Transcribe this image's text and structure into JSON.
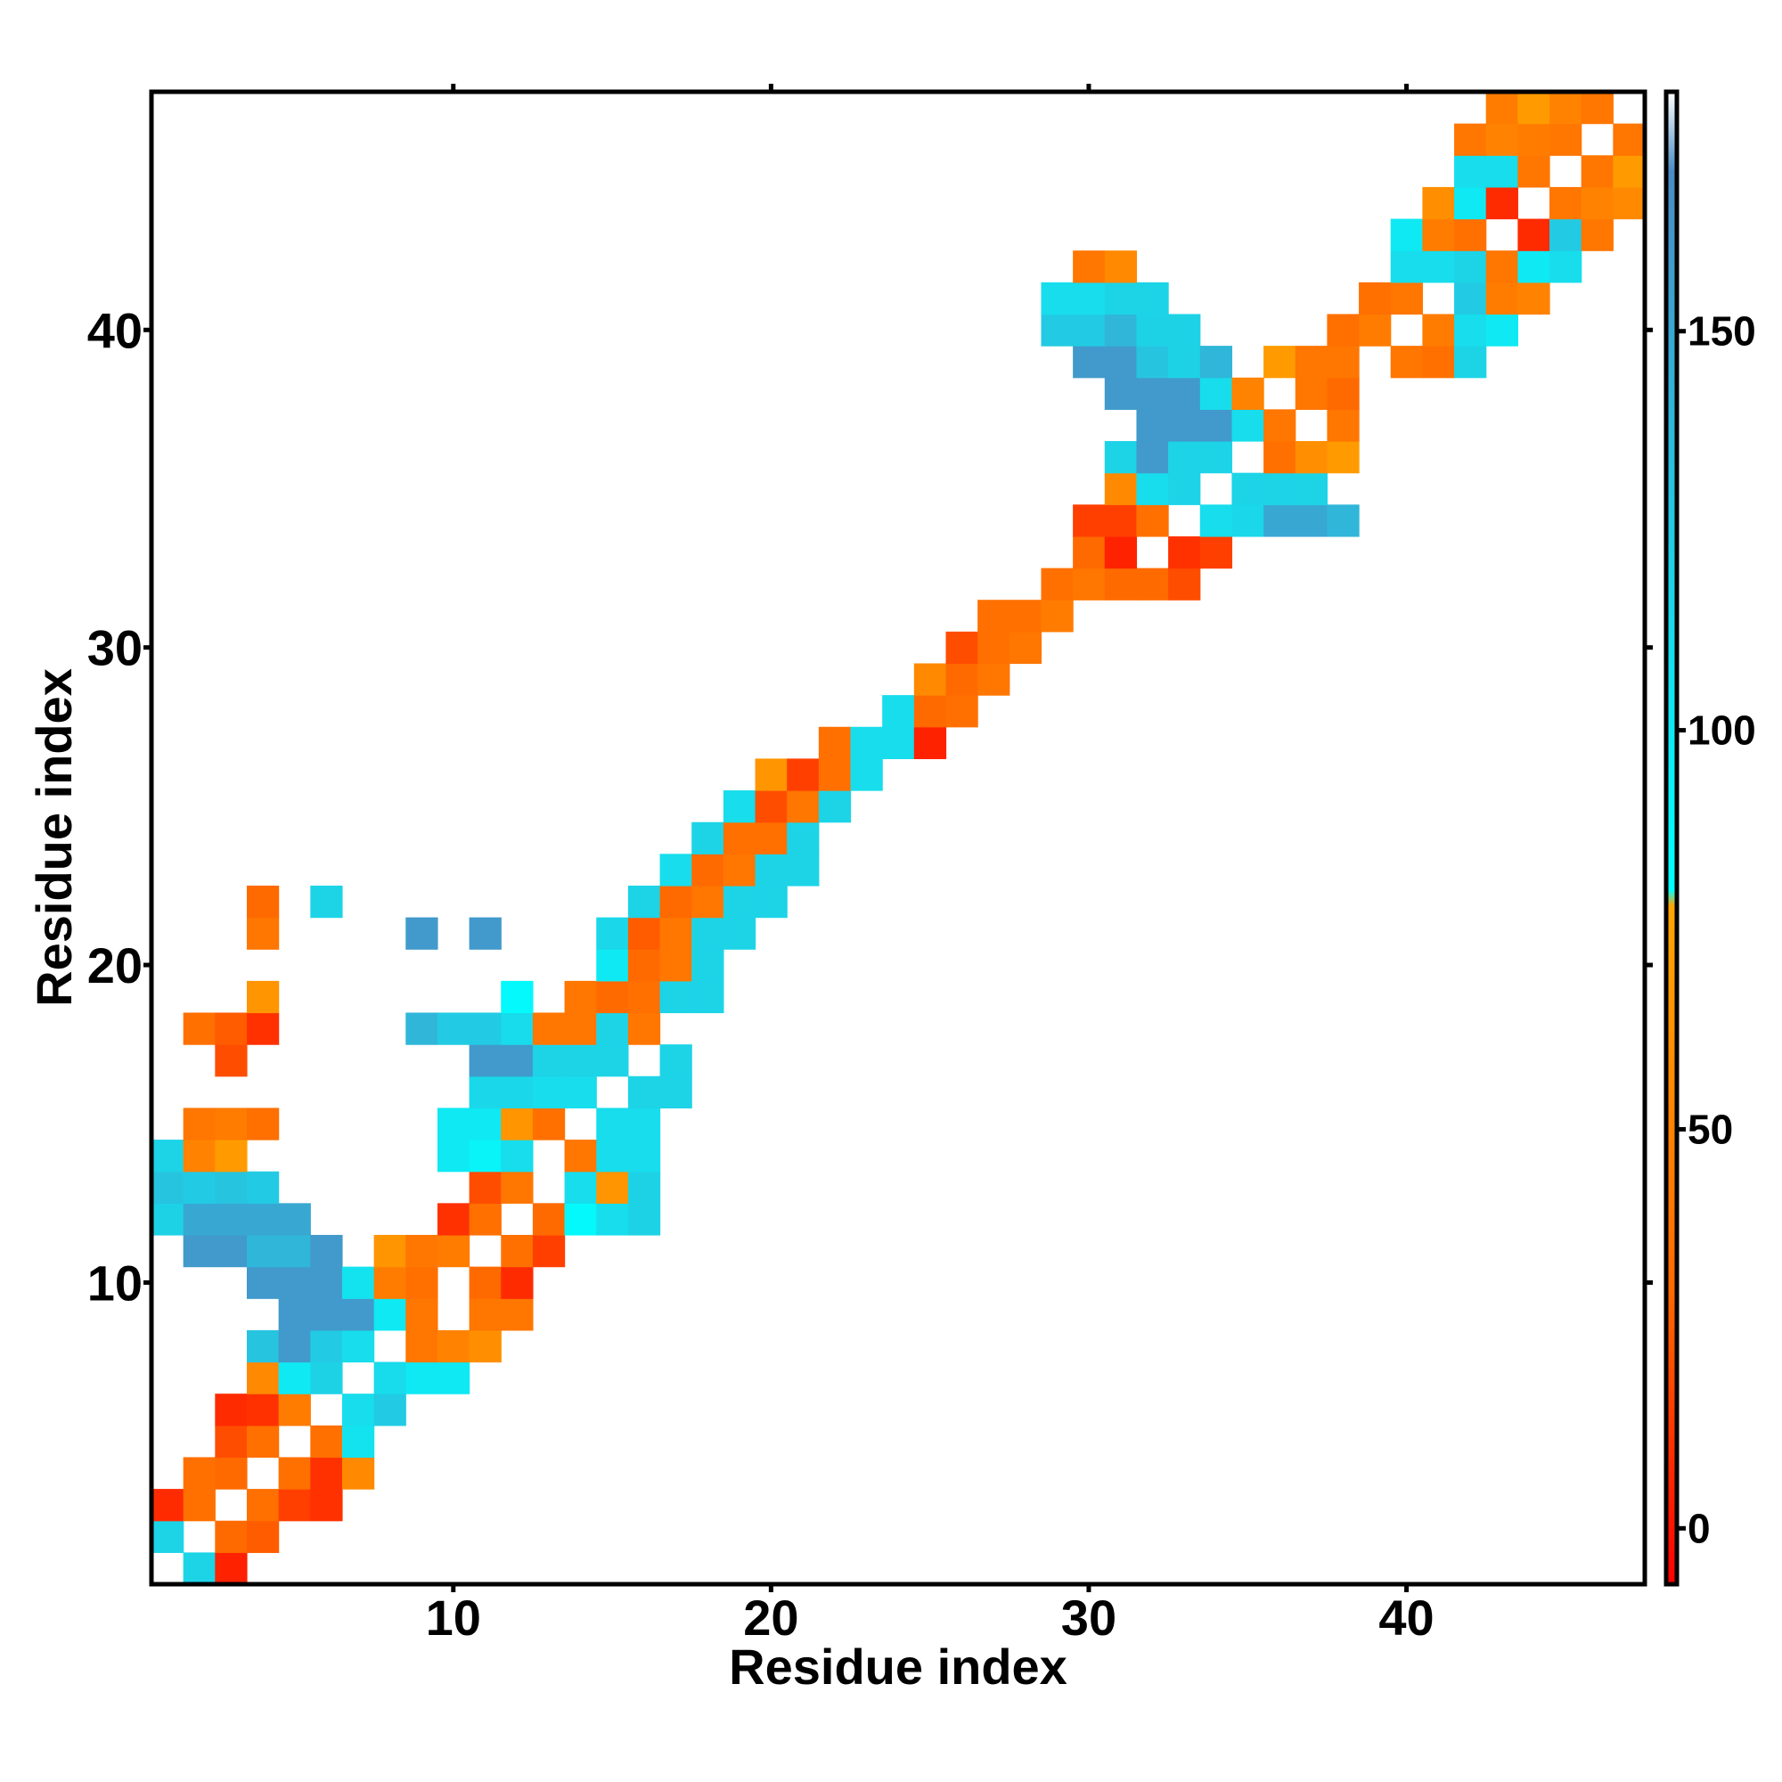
{
  "chart_data": {
    "type": "heatmap",
    "xlabel": "Residue index",
    "ylabel": "Residue index",
    "x_range": [
      1,
      47
    ],
    "y_range": [
      1,
      47
    ],
    "x_ticks": [
      10,
      20,
      30,
      40
    ],
    "y_ticks": [
      10,
      20,
      30,
      40
    ],
    "colorbar": {
      "range": [
        -7,
        180
      ],
      "ticks": [
        0,
        50,
        100,
        150
      ],
      "stops": [
        {
          "value": -7,
          "color": "#ff0000"
        },
        {
          "value": 30,
          "color": "#ff6a00"
        },
        {
          "value": 78,
          "color": "#ffa500"
        },
        {
          "value": 80,
          "color": "#00ffff"
        },
        {
          "value": 120,
          "color": "#1ed2e6"
        },
        {
          "value": 170,
          "color": "#4a8cc4"
        },
        {
          "value": 180,
          "color": "#ffffff"
        }
      ]
    },
    "grid": false,
    "legend": "colorbar-right",
    "cells_ref": "Each cell is [x_residue, y_residue, value]; blank (white) cells have no value.",
    "cells": [
      [
        1,
        1,
        null
      ],
      [
        2,
        1,
        118
      ],
      [
        3,
        1,
        5
      ],
      [
        1,
        2,
        118
      ],
      [
        3,
        2,
        30
      ],
      [
        4,
        2,
        25
      ],
      [
        1,
        3,
        8
      ],
      [
        2,
        3,
        35
      ],
      [
        4,
        3,
        35
      ],
      [
        5,
        3,
        15
      ],
      [
        6,
        3,
        10
      ],
      [
        2,
        4,
        35
      ],
      [
        3,
        4,
        30
      ],
      [
        5,
        4,
        35
      ],
      [
        6,
        4,
        10
      ],
      [
        7,
        4,
        55
      ],
      [
        3,
        5,
        20
      ],
      [
        4,
        5,
        35
      ],
      [
        6,
        5,
        35
      ],
      [
        7,
        5,
        105
      ],
      [
        3,
        6,
        8
      ],
      [
        4,
        6,
        10
      ],
      [
        5,
        6,
        45
      ],
      [
        7,
        6,
        110
      ],
      [
        8,
        6,
        125
      ],
      [
        4,
        7,
        55
      ],
      [
        5,
        7,
        100
      ],
      [
        6,
        7,
        120
      ],
      [
        8,
        7,
        112
      ],
      [
        9,
        7,
        100
      ],
      [
        10,
        7,
        100
      ],
      [
        4,
        8,
        130
      ],
      [
        5,
        8,
        160
      ],
      [
        6,
        8,
        125
      ],
      [
        7,
        8,
        110
      ],
      [
        9,
        8,
        40
      ],
      [
        10,
        8,
        50
      ],
      [
        11,
        8,
        60
      ],
      [
        5,
        9,
        160
      ],
      [
        6,
        9,
        160
      ],
      [
        7,
        9,
        160
      ],
      [
        8,
        9,
        100
      ],
      [
        9,
        9,
        40
      ],
      [
        11,
        9,
        40
      ],
      [
        12,
        9,
        40
      ],
      [
        4,
        10,
        160
      ],
      [
        5,
        10,
        160
      ],
      [
        6,
        10,
        160
      ],
      [
        7,
        10,
        105
      ],
      [
        8,
        10,
        45
      ],
      [
        9,
        10,
        35
      ],
      [
        11,
        10,
        30
      ],
      [
        12,
        10,
        8
      ],
      [
        2,
        11,
        160
      ],
      [
        3,
        11,
        160
      ],
      [
        4,
        11,
        140
      ],
      [
        5,
        11,
        140
      ],
      [
        6,
        11,
        160
      ],
      [
        8,
        11,
        65
      ],
      [
        9,
        11,
        40
      ],
      [
        10,
        11,
        45
      ],
      [
        12,
        11,
        35
      ],
      [
        13,
        11,
        15
      ],
      [
        1,
        12,
        120
      ],
      [
        2,
        12,
        150
      ],
      [
        3,
        12,
        150
      ],
      [
        4,
        12,
        150
      ],
      [
        5,
        12,
        150
      ],
      [
        10,
        12,
        10
      ],
      [
        11,
        12,
        35
      ],
      [
        13,
        12,
        30
      ],
      [
        14,
        12,
        85
      ],
      [
        15,
        12,
        110
      ],
      [
        16,
        12,
        120
      ],
      [
        1,
        13,
        130
      ],
      [
        2,
        13,
        125
      ],
      [
        3,
        13,
        130
      ],
      [
        4,
        13,
        125
      ],
      [
        11,
        13,
        20
      ],
      [
        12,
        13,
        40
      ],
      [
        14,
        13,
        110
      ],
      [
        15,
        13,
        65
      ],
      [
        16,
        13,
        120
      ],
      [
        1,
        14,
        118
      ],
      [
        2,
        14,
        50
      ],
      [
        3,
        14,
        70
      ],
      [
        10,
        14,
        100
      ],
      [
        11,
        14,
        90
      ],
      [
        12,
        14,
        110
      ],
      [
        14,
        14,
        40
      ],
      [
        15,
        14,
        110
      ],
      [
        16,
        14,
        110
      ],
      [
        2,
        15,
        40
      ],
      [
        3,
        15,
        45
      ],
      [
        4,
        15,
        35
      ],
      [
        10,
        15,
        100
      ],
      [
        11,
        15,
        100
      ],
      [
        12,
        15,
        65
      ],
      [
        13,
        15,
        35
      ],
      [
        15,
        15,
        110
      ],
      [
        16,
        15,
        110
      ],
      [
        11,
        16,
        115
      ],
      [
        12,
        16,
        115
      ],
      [
        13,
        16,
        110
      ],
      [
        14,
        16,
        110
      ],
      [
        16,
        16,
        118
      ],
      [
        17,
        16,
        118
      ],
      [
        3,
        17,
        20
      ],
      [
        11,
        17,
        160
      ],
      [
        12,
        17,
        160
      ],
      [
        13,
        17,
        118
      ],
      [
        14,
        17,
        118
      ],
      [
        15,
        17,
        118
      ],
      [
        17,
        17,
        118
      ],
      [
        2,
        18,
        35
      ],
      [
        3,
        18,
        25
      ],
      [
        4,
        18,
        10
      ],
      [
        9,
        18,
        140
      ],
      [
        10,
        18,
        125
      ],
      [
        11,
        18,
        125
      ],
      [
        12,
        18,
        112
      ],
      [
        13,
        18,
        40
      ],
      [
        14,
        18,
        40
      ],
      [
        15,
        18,
        118
      ],
      [
        16,
        18,
        40
      ],
      [
        4,
        19,
        65
      ],
      [
        12,
        19,
        85
      ],
      [
        14,
        19,
        40
      ],
      [
        15,
        19,
        30
      ],
      [
        16,
        19,
        35
      ],
      [
        17,
        19,
        118
      ],
      [
        18,
        19,
        118
      ],
      [
        15,
        20,
        100
      ],
      [
        16,
        20,
        30
      ],
      [
        17,
        20,
        40
      ],
      [
        18,
        20,
        118
      ],
      [
        4,
        21,
        40
      ],
      [
        9,
        21,
        160
      ],
      [
        11,
        21,
        160
      ],
      [
        15,
        21,
        115
      ],
      [
        16,
        21,
        25
      ],
      [
        17,
        21,
        40
      ],
      [
        18,
        21,
        118
      ],
      [
        19,
        21,
        118
      ],
      [
        4,
        22,
        30
      ],
      [
        6,
        22,
        118
      ],
      [
        16,
        22,
        118
      ],
      [
        17,
        22,
        30
      ],
      [
        18,
        22,
        40
      ],
      [
        19,
        22,
        118
      ],
      [
        20,
        22,
        118
      ],
      [
        17,
        23,
        110
      ],
      [
        18,
        23,
        30
      ],
      [
        19,
        23,
        40
      ],
      [
        20,
        23,
        118
      ],
      [
        21,
        23,
        118
      ],
      [
        18,
        24,
        118
      ],
      [
        19,
        24,
        35
      ],
      [
        20,
        24,
        35
      ],
      [
        21,
        24,
        118
      ],
      [
        19,
        25,
        110
      ],
      [
        20,
        25,
        20
      ],
      [
        21,
        25,
        40
      ],
      [
        22,
        25,
        118
      ],
      [
        20,
        26,
        65
      ],
      [
        21,
        26,
        15
      ],
      [
        22,
        26,
        35
      ],
      [
        23,
        26,
        110
      ],
      [
        22,
        27,
        35
      ],
      [
        23,
        27,
        110
      ],
      [
        24,
        27,
        110
      ],
      [
        25,
        27,
        5
      ],
      [
        24,
        28,
        110
      ],
      [
        25,
        28,
        30
      ],
      [
        26,
        28,
        35
      ],
      [
        25,
        29,
        55
      ],
      [
        26,
        29,
        30
      ],
      [
        27,
        29,
        40
      ],
      [
        26,
        30,
        20
      ],
      [
        27,
        30,
        35
      ],
      [
        28,
        30,
        40
      ],
      [
        27,
        31,
        35
      ],
      [
        28,
        31,
        35
      ],
      [
        29,
        31,
        45
      ],
      [
        29,
        32,
        35
      ],
      [
        30,
        32,
        40
      ],
      [
        31,
        32,
        30
      ],
      [
        32,
        32,
        30
      ],
      [
        33,
        32,
        20
      ],
      [
        30,
        33,
        30
      ],
      [
        31,
        33,
        5
      ],
      [
        33,
        33,
        10
      ],
      [
        34,
        33,
        15
      ],
      [
        30,
        34,
        15
      ],
      [
        31,
        34,
        15
      ],
      [
        32,
        34,
        35
      ],
      [
        34,
        34,
        110
      ],
      [
        35,
        34,
        115
      ],
      [
        36,
        34,
        150
      ],
      [
        37,
        34,
        150
      ],
      [
        38,
        34,
        140
      ],
      [
        31,
        35,
        55
      ],
      [
        32,
        35,
        110
      ],
      [
        33,
        35,
        118
      ],
      [
        35,
        35,
        118
      ],
      [
        36,
        35,
        118
      ],
      [
        37,
        35,
        118
      ],
      [
        31,
        36,
        118
      ],
      [
        32,
        36,
        160
      ],
      [
        33,
        36,
        118
      ],
      [
        34,
        36,
        118
      ],
      [
        36,
        36,
        35
      ],
      [
        37,
        36,
        60
      ],
      [
        38,
        36,
        70
      ],
      [
        32,
        37,
        160
      ],
      [
        33,
        37,
        160
      ],
      [
        34,
        37,
        160
      ],
      [
        35,
        37,
        110
      ],
      [
        36,
        37,
        40
      ],
      [
        38,
        37,
        40
      ],
      [
        31,
        38,
        160
      ],
      [
        32,
        38,
        160
      ],
      [
        33,
        38,
        160
      ],
      [
        34,
        38,
        110
      ],
      [
        35,
        38,
        50
      ],
      [
        37,
        38,
        40
      ],
      [
        38,
        38,
        30
      ],
      [
        30,
        39,
        160
      ],
      [
        31,
        39,
        160
      ],
      [
        32,
        39,
        130
      ],
      [
        33,
        39,
        120
      ],
      [
        34,
        39,
        140
      ],
      [
        36,
        39,
        70
      ],
      [
        37,
        39,
        40
      ],
      [
        38,
        39,
        40
      ],
      [
        40,
        39,
        40
      ],
      [
        41,
        39,
        35
      ],
      [
        42,
        39,
        118
      ],
      [
        29,
        40,
        125
      ],
      [
        30,
        40,
        125
      ],
      [
        31,
        40,
        140
      ],
      [
        32,
        40,
        120
      ],
      [
        33,
        40,
        120
      ],
      [
        38,
        40,
        35
      ],
      [
        39,
        40,
        45
      ],
      [
        41,
        40,
        45
      ],
      [
        42,
        40,
        110
      ],
      [
        43,
        40,
        100
      ],
      [
        29,
        41,
        110
      ],
      [
        30,
        41,
        110
      ],
      [
        31,
        41,
        118
      ],
      [
        32,
        41,
        118
      ],
      [
        39,
        41,
        35
      ],
      [
        40,
        41,
        40
      ],
      [
        42,
        41,
        125
      ],
      [
        43,
        41,
        45
      ],
      [
        44,
        41,
        50
      ],
      [
        30,
        42,
        40
      ],
      [
        31,
        42,
        55
      ],
      [
        40,
        42,
        110
      ],
      [
        41,
        42,
        110
      ],
      [
        42,
        42,
        118
      ],
      [
        43,
        42,
        40
      ],
      [
        44,
        42,
        100
      ],
      [
        45,
        42,
        110
      ],
      [
        40,
        43,
        100
      ],
      [
        41,
        43,
        45
      ],
      [
        42,
        43,
        35
      ],
      [
        44,
        43,
        8
      ],
      [
        45,
        43,
        125
      ],
      [
        46,
        43,
        40
      ],
      [
        41,
        44,
        60
      ],
      [
        42,
        44,
        100
      ],
      [
        43,
        44,
        8
      ],
      [
        45,
        44,
        40
      ],
      [
        46,
        44,
        50
      ],
      [
        47,
        44,
        55
      ],
      [
        42,
        45,
        110
      ],
      [
        43,
        45,
        110
      ],
      [
        44,
        45,
        40
      ],
      [
        46,
        45,
        40
      ],
      [
        47,
        45,
        70
      ],
      [
        42,
        46,
        40
      ],
      [
        43,
        46,
        50
      ],
      [
        44,
        46,
        45
      ],
      [
        45,
        46,
        40
      ],
      [
        47,
        46,
        40
      ],
      [
        43,
        47,
        45
      ],
      [
        44,
        47,
        70
      ],
      [
        45,
        47,
        50
      ],
      [
        46,
        47,
        40
      ]
    ]
  }
}
